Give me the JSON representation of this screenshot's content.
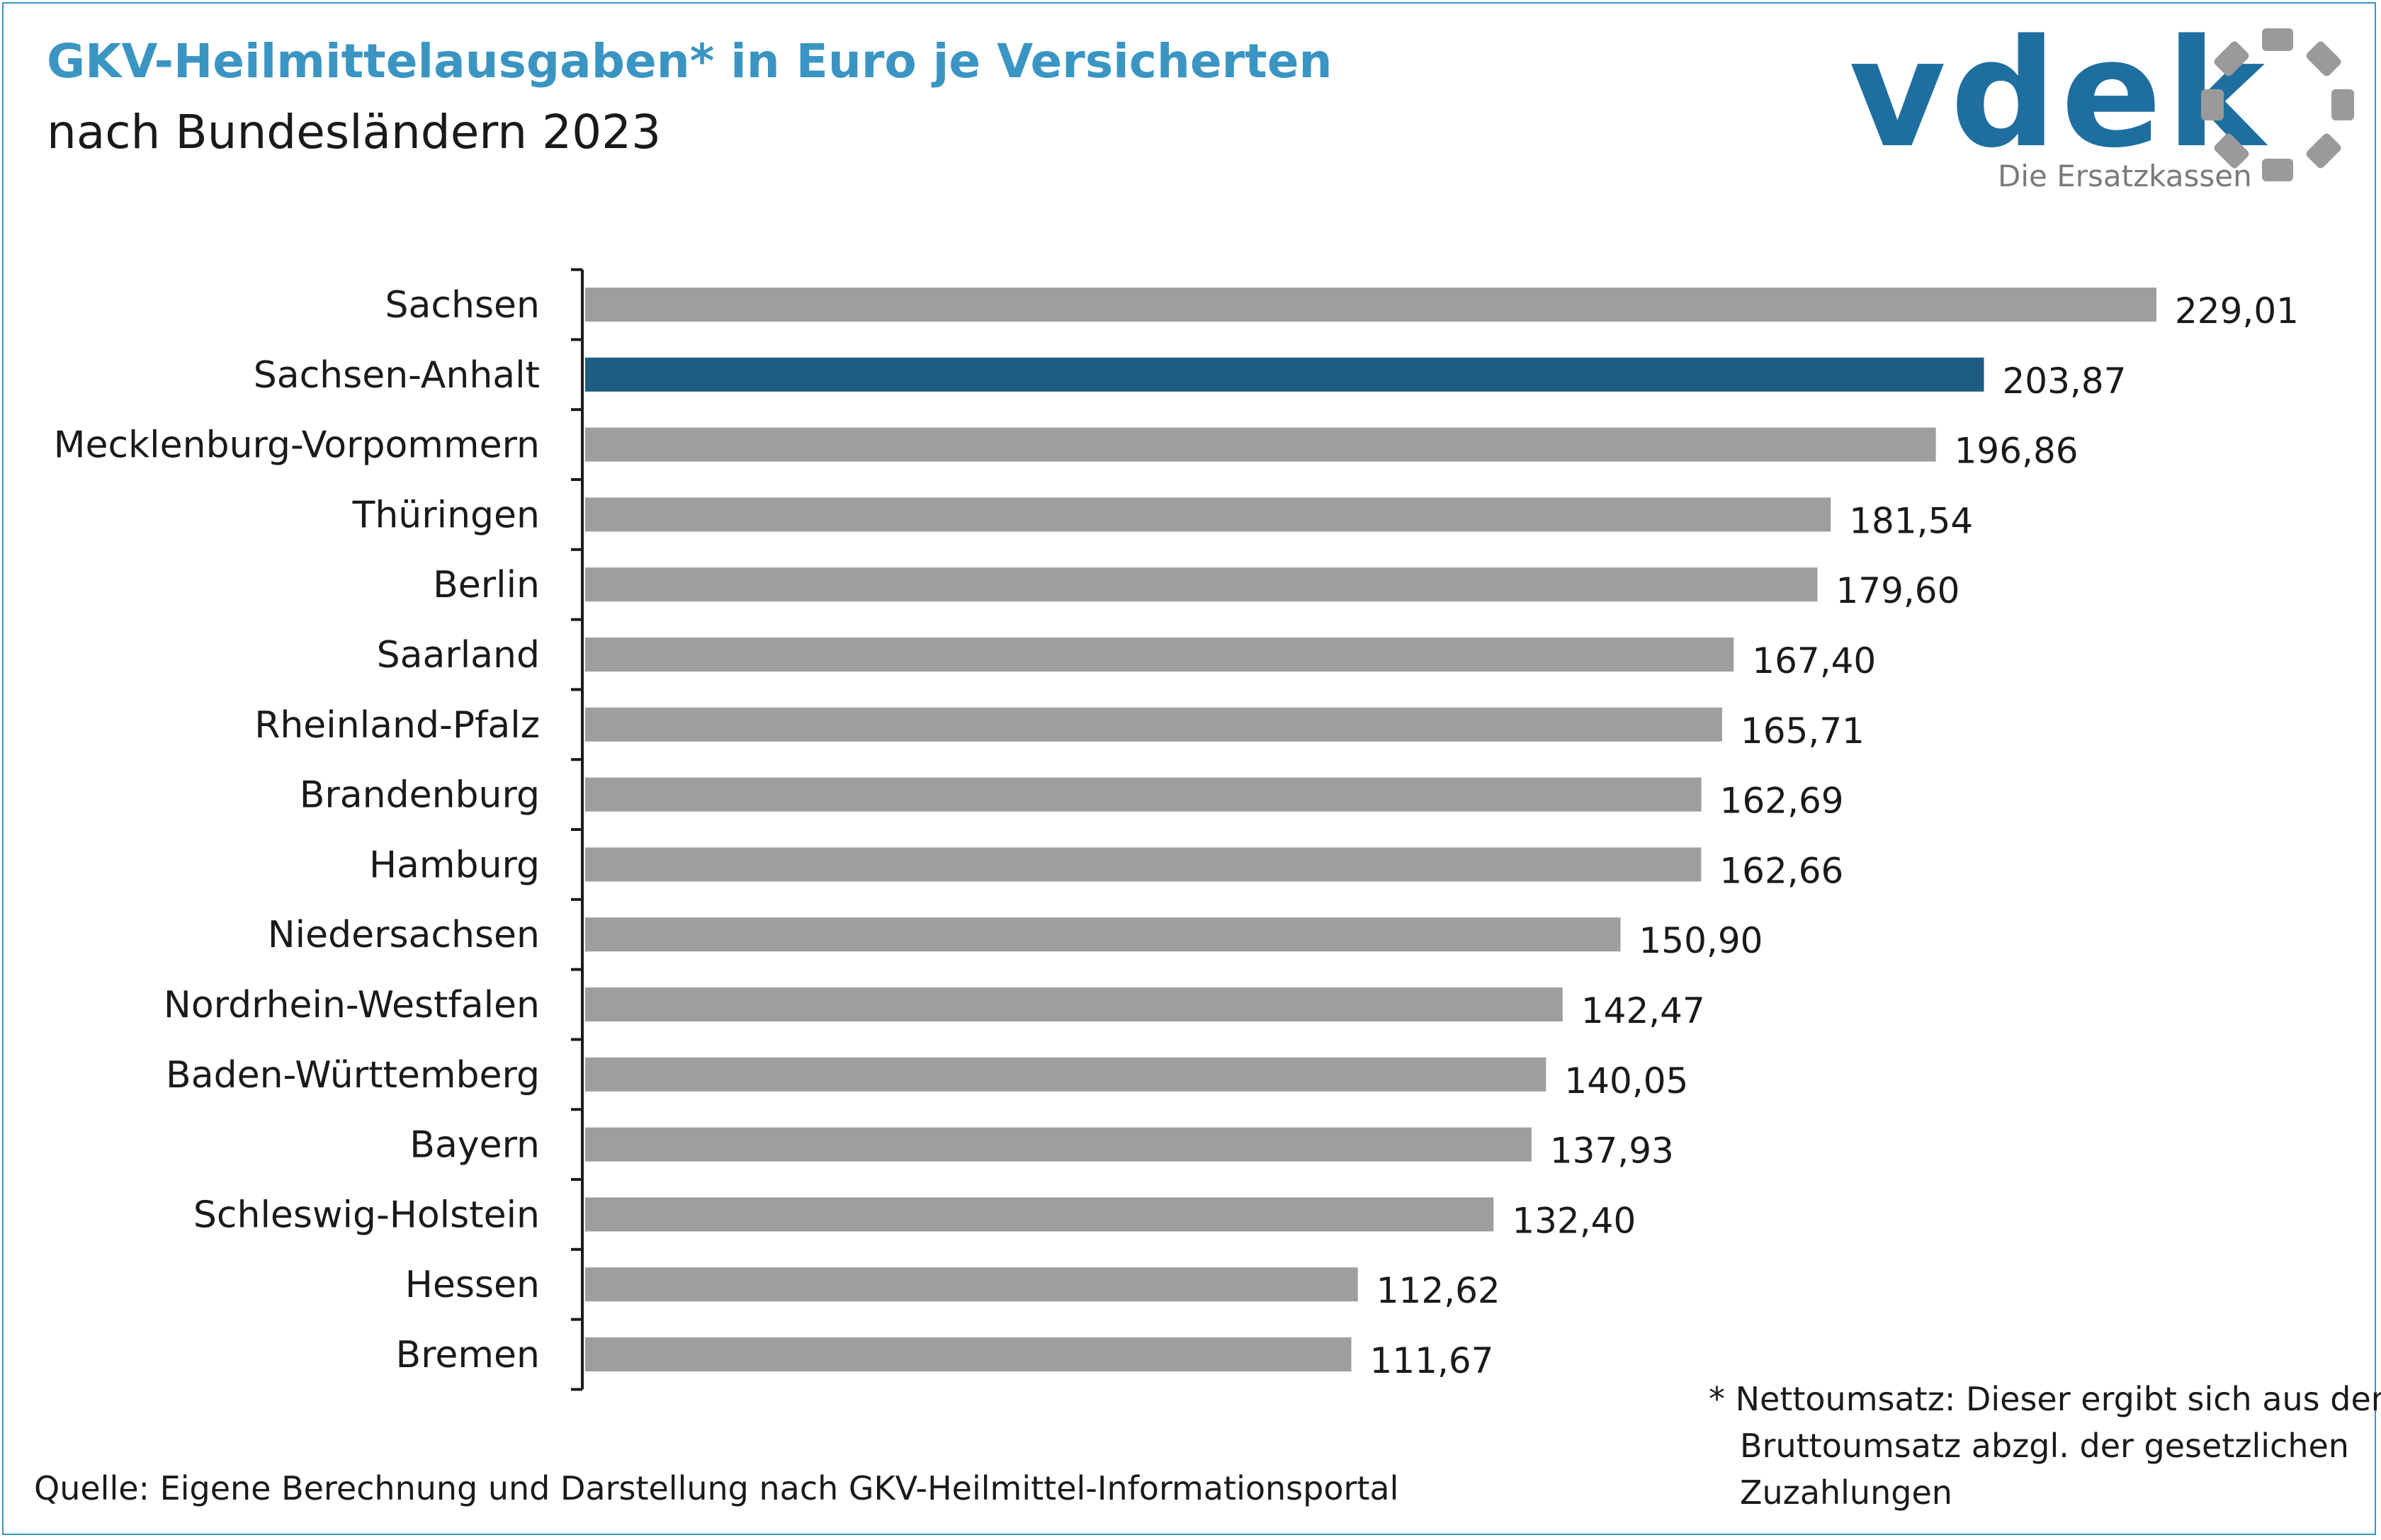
{
  "header": {
    "title": "GKV-Heilmittelausgaben* in Euro je Versicherten",
    "subtitle": "nach Bundesländern 2023"
  },
  "logo": {
    "name": "vdek",
    "tagline": "Die Ersatzkassen",
    "color": "#1e6f9f",
    "wheel_color": "#9a9a9a"
  },
  "chart_data": {
    "type": "bar",
    "orientation": "horizontal",
    "categories": [
      "Sachsen",
      "Sachsen-Anhalt",
      "Mecklenburg-Vorpommern",
      "Thüringen",
      "Berlin",
      "Saarland",
      "Rheinland-Pfalz",
      "Brandenburg",
      "Hamburg",
      "Niedersachsen",
      "Nordrhein-Westfalen",
      "Baden-Württemberg",
      "Bayern",
      "Schleswig-Holstein",
      "Hessen",
      "Bremen"
    ],
    "values": [
      229.01,
      203.87,
      196.86,
      181.54,
      179.6,
      167.4,
      165.71,
      162.69,
      162.66,
      150.9,
      142.47,
      140.05,
      137.93,
      132.4,
      112.62,
      111.67
    ],
    "value_labels": [
      "229,01",
      "203,87",
      "196,86",
      "181,54",
      "179,60",
      "167,40",
      "165,71",
      "162,69",
      "162,66",
      "150,90",
      "142,47",
      "140,05",
      "137,93",
      "132,40",
      "112,62",
      "111,67"
    ],
    "highlight": "Sachsen-Anhalt",
    "bar_color": "#9e9e9e",
    "highlight_color": "#1f5c84",
    "xlim": [
      0,
      229.01
    ],
    "grid": false,
    "legend": "none"
  },
  "footnote": {
    "line1": "* Nettoumsatz: Dieser ergibt sich aus dem",
    "line2": "Bruttoumsatz abzgl. der gesetzlichen",
    "line3": "Zuzahlungen"
  },
  "source": "Quelle: Eigene Berechnung und Darstellung nach GKV-Heilmittel-Informationsportal"
}
